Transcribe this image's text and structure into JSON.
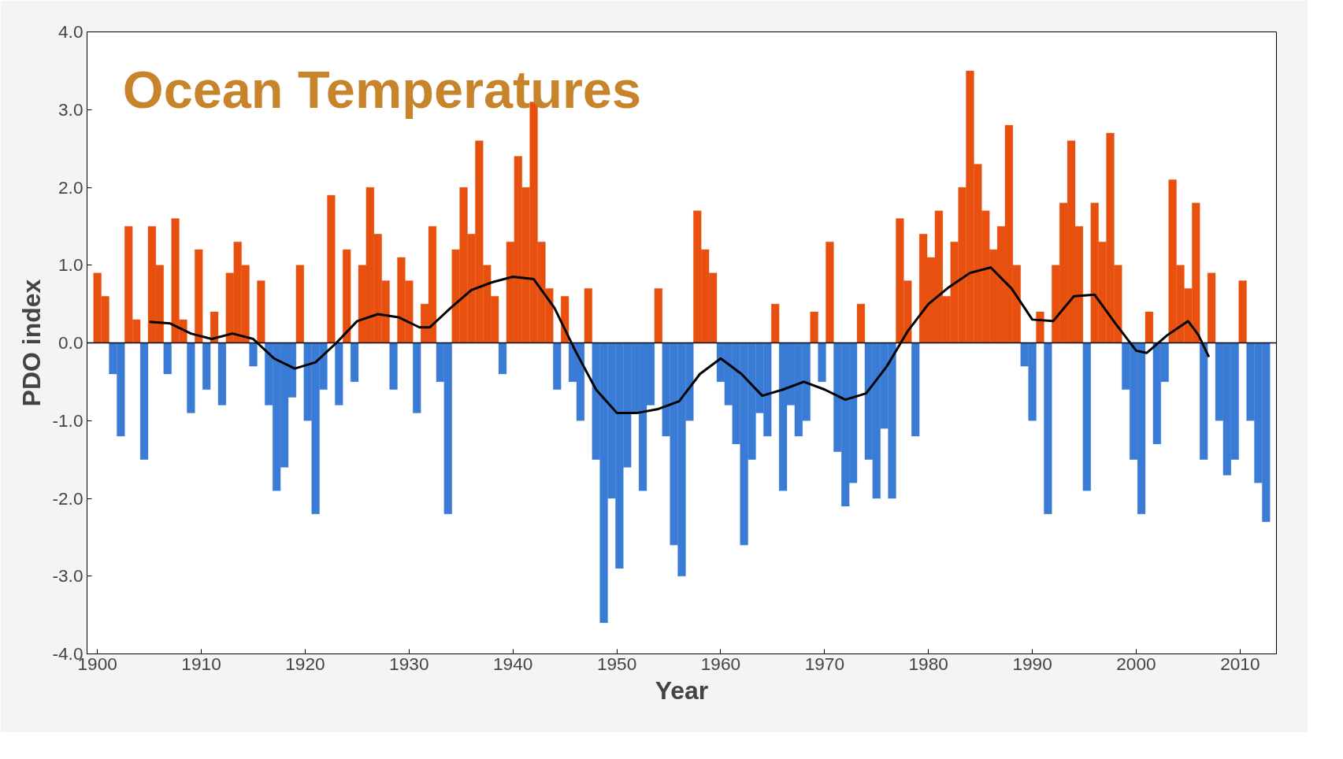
{
  "chart_data": {
    "type": "bar",
    "title": "Ocean Temperatures",
    "xlabel": "Year",
    "ylabel": "PDO index",
    "xlim": [
      1899,
      2013.5
    ],
    "ylim": [
      -4,
      4
    ],
    "xticks": [
      1900,
      1910,
      1920,
      1930,
      1940,
      1950,
      1960,
      1970,
      1980,
      1990,
      2000,
      2010
    ],
    "yticks": [
      {
        "value": -4,
        "label": "-4.0"
      },
      {
        "value": -3,
        "label": "-3.0"
      },
      {
        "value": -2,
        "label": "-2.0"
      },
      {
        "value": -1,
        "label": "-1.0"
      },
      {
        "value": 0,
        "label": "0.0"
      },
      {
        "value": 1,
        "label": "1.0"
      },
      {
        "value": 2,
        "label": "2.0"
      },
      {
        "value": 3,
        "label": "3.0"
      },
      {
        "value": 4,
        "label": "4.0"
      }
    ],
    "grid": false,
    "ref_lines": [
      {
        "axis": "y",
        "value": 0,
        "color": "#000000"
      }
    ],
    "series": [
      {
        "color": "#e8500f",
        "x": [
          1900.0,
          1900.75,
          1903.0,
          1903.75,
          1905.25,
          1906.0,
          1907.5,
          1908.25,
          1909.75,
          1911.25,
          1912.75,
          1913.5,
          1914.25,
          1915.75,
          1919.5,
          1922.5,
          1924.0,
          1925.5,
          1926.25,
          1927.0,
          1927.75,
          1929.25,
          1930.0,
          1931.5,
          1932.25,
          1934.5,
          1935.25,
          1936.0,
          1936.75,
          1937.5,
          1938.25,
          1939.75,
          1940.5,
          1941.25,
          1942.0,
          1942.75,
          1943.5,
          1945.0,
          1947.25,
          1954.0,
          1957.75,
          1958.5,
          1959.25,
          1965.25,
          1969.0,
          1970.5,
          1973.5,
          1977.25,
          1978.0,
          1979.5,
          1980.25,
          1981.0,
          1981.75,
          1982.5,
          1983.25,
          1984.0,
          1984.75,
          1985.5,
          1986.25,
          1987.0,
          1987.75,
          1988.5,
          1990.75,
          1992.25,
          1993.0,
          1993.75,
          1994.5,
          1996.0,
          1996.75,
          1997.5,
          1998.25,
          2001.25,
          2003.5,
          2004.25,
          2005.0,
          2005.75,
          2007.25,
          2010.25
        ],
        "values": [
          0.9,
          0.6,
          1.5,
          0.3,
          1.5,
          1.0,
          1.6,
          0.3,
          1.2,
          0.4,
          0.9,
          1.3,
          1.0,
          0.8,
          1.0,
          1.9,
          1.2,
          1.0,
          2.0,
          1.4,
          0.8,
          1.1,
          0.8,
          0.5,
          1.5,
          1.2,
          2.0,
          1.4,
          2.6,
          1.0,
          0.6,
          1.3,
          2.4,
          2.0,
          3.1,
          1.3,
          0.7,
          0.6,
          0.7,
          0.7,
          1.7,
          1.2,
          0.9,
          0.5,
          0.4,
          1.3,
          0.5,
          1.6,
          0.8,
          1.4,
          1.1,
          1.7,
          0.6,
          1.3,
          2.0,
          3.5,
          2.3,
          1.7,
          1.2,
          1.5,
          2.8,
          1.0,
          0.4,
          1.0,
          1.8,
          2.6,
          1.5,
          1.8,
          1.3,
          2.7,
          1.0,
          0.4,
          2.1,
          1.0,
          0.7,
          1.8,
          0.9,
          0.8
        ]
      },
      {
        "color": "#3a7bd5",
        "x": [
          1901.5,
          1902.25,
          1904.5,
          1906.75,
          1909.0,
          1910.5,
          1912.0,
          1915.0,
          1916.5,
          1917.25,
          1918.0,
          1918.75,
          1920.25,
          1921.0,
          1921.75,
          1923.25,
          1924.75,
          1928.5,
          1930.75,
          1933.0,
          1933.75,
          1939.0,
          1944.25,
          1945.75,
          1946.5,
          1948.0,
          1948.75,
          1949.5,
          1950.25,
          1951.0,
          1951.75,
          1952.5,
          1953.25,
          1954.75,
          1955.5,
          1956.25,
          1957.0,
          1960.0,
          1960.75,
          1961.5,
          1962.25,
          1963.0,
          1963.75,
          1964.5,
          1966.0,
          1966.75,
          1967.5,
          1968.25,
          1969.75,
          1971.25,
          1972.0,
          1972.75,
          1974.25,
          1975.0,
          1975.75,
          1976.5,
          1978.75,
          1989.25,
          1990.0,
          1991.5,
          1995.25,
          1999.0,
          1999.75,
          2000.5,
          2002.0,
          2002.75,
          2006.5,
          2008.0,
          2008.75,
          2009.5,
          2011.0,
          2011.75,
          2012.5
        ],
        "values": [
          -0.4,
          -1.2,
          -1.5,
          -0.4,
          -0.9,
          -0.6,
          -0.8,
          -0.3,
          -0.8,
          -1.9,
          -1.6,
          -0.7,
          -1.0,
          -2.2,
          -0.6,
          -0.8,
          -0.5,
          -0.6,
          -0.9,
          -0.5,
          -2.2,
          -0.4,
          -0.6,
          -0.5,
          -1.0,
          -1.5,
          -3.6,
          -2.0,
          -2.9,
          -1.6,
          -0.9,
          -1.9,
          -0.8,
          -1.2,
          -2.6,
          -3.0,
          -1.0,
          -0.5,
          -0.8,
          -1.3,
          -2.6,
          -1.5,
          -0.9,
          -1.2,
          -1.9,
          -0.8,
          -1.2,
          -1.0,
          -0.5,
          -1.4,
          -2.1,
          -1.8,
          -1.5,
          -2.0,
          -1.1,
          -2.0,
          -1.2,
          -0.3,
          -1.0,
          -2.2,
          -1.9,
          -0.6,
          -1.5,
          -2.2,
          -1.3,
          -0.5,
          -1.5,
          -1.0,
          -1.7,
          -1.5,
          -1.0,
          -1.8,
          -2.3
        ]
      },
      {
        "type": "line",
        "color": "#000000",
        "x": [
          1905,
          1907,
          1909,
          1911,
          1913,
          1915,
          1917,
          1919,
          1921,
          1923,
          1925,
          1927,
          1929,
          1931,
          1932,
          1934,
          1936,
          1938,
          1940,
          1942,
          1944,
          1946,
          1948,
          1950,
          1952,
          1954,
          1956,
          1958,
          1960,
          1962,
          1964,
          1966,
          1968,
          1970,
          1972,
          1974,
          1976,
          1978,
          1980,
          1982,
          1984,
          1986,
          1988,
          1990,
          1992,
          1994,
          1996,
          1998,
          2000,
          2001,
          2003,
          2005,
          2006,
          2007
        ],
        "values": [
          0.27,
          0.25,
          0.12,
          0.05,
          0.12,
          0.05,
          -0.2,
          -0.33,
          -0.25,
          0.0,
          0.28,
          0.37,
          0.33,
          0.2,
          0.2,
          0.45,
          0.68,
          0.78,
          0.85,
          0.82,
          0.45,
          -0.1,
          -0.6,
          -0.9,
          -0.9,
          -0.85,
          -0.75,
          -0.4,
          -0.2,
          -0.4,
          -0.68,
          -0.6,
          -0.5,
          -0.6,
          -0.73,
          -0.65,
          -0.3,
          0.15,
          0.5,
          0.72,
          0.9,
          0.97,
          0.7,
          0.3,
          0.28,
          0.6,
          0.62,
          0.25,
          -0.1,
          -0.13,
          0.1,
          0.28,
          0.1,
          -0.18
        ]
      }
    ]
  }
}
